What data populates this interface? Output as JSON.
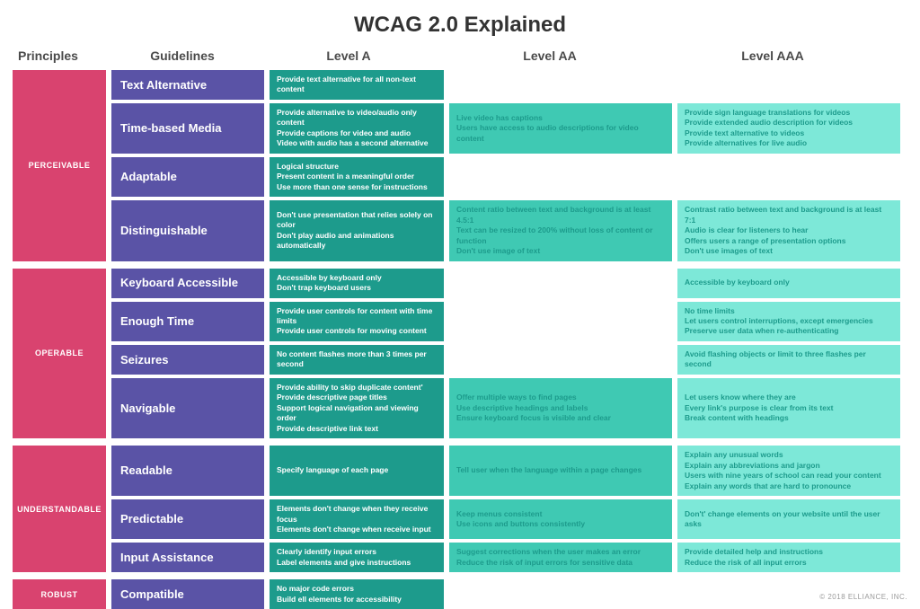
{
  "title": "WCAG 2.0 Explained",
  "columns": {
    "principles": "Principles",
    "guidelines": "Guidelines",
    "levelA": "Level A",
    "levelAA": "Level AA",
    "levelAAA": "Level AAA"
  },
  "colors": {
    "principle": "#d9436f",
    "guideline": "#5a53a6",
    "levelA": "#1d9b8c",
    "levelAA": "#3fc9b3",
    "levelAAA": "#7de8d8"
  },
  "footer": "© 2018 ELLIANCE, INC.",
  "sections": [
    {
      "principle": "PERCEIVABLE",
      "rows": [
        {
          "guideline": "Text Alternative",
          "levelA": [
            "Provide text alternative for all non-text content"
          ],
          "levelAA": [],
          "levelAAA": []
        },
        {
          "guideline": "Time-based Media",
          "levelA": [
            "Provide alternative to video/audio only content",
            "Provide captions for video and audio",
            "Video with audio has a second alternative"
          ],
          "levelAA": [
            "Live video has captions",
            "Users have access to audio descriptions for video content"
          ],
          "levelAAA": [
            "Provide sign language translations for videos",
            "Provide extended audio description for videos",
            "Provide text alternative to videos",
            "Provide alternatives for live audio"
          ]
        },
        {
          "guideline": "Adaptable",
          "levelA": [
            "Logical structure",
            "Present content in a meaningful order",
            "Use more than one sense for instructions"
          ],
          "levelAA": [],
          "levelAAA": []
        },
        {
          "guideline": "Distinguishable",
          "levelA": [
            "Don't use presentation that relies solely on color",
            "Don't play audio and animations automatically"
          ],
          "levelAA": [
            "Content ratio between text and background is at least 4.5:1",
            "Text can be resized to 200% without loss of content or function",
            "Don't use image of text"
          ],
          "levelAAA": [
            "Contrast ratio between text and background is at least 7:1",
            "Audio is clear for listeners to hear",
            "Offers users a range of presentation options",
            "Don't use images of text"
          ]
        }
      ]
    },
    {
      "principle": "OPERABLE",
      "rows": [
        {
          "guideline": "Keyboard Accessible",
          "levelA": [
            "Accessible by keyboard only",
            "Don't trap keyboard users"
          ],
          "levelAA": [],
          "levelAAA": [
            "Accessible by keyboard only"
          ]
        },
        {
          "guideline": "Enough Time",
          "levelA": [
            "Provide user controls for content with time limits",
            "Provide user controls for moving content"
          ],
          "levelAA": [],
          "levelAAA": [
            "No time limits",
            "Let users control interruptions, except emergencies",
            "Preserve user data when re-authenticating"
          ]
        },
        {
          "guideline": "Seizures",
          "levelA": [
            "No content flashes more than 3 times per second"
          ],
          "levelAA": [],
          "levelAAA": [
            "Avoid flashing objects or limit to three flashes per second"
          ]
        },
        {
          "guideline": "Navigable",
          "levelA": [
            "Provide ability to skip duplicate content'",
            "Provide descriptive page titles",
            "Support logical navigation and viewing order",
            "Provide descriptive link text"
          ],
          "levelAA": [
            "Offer multiple ways to find pages",
            "Use descriptive headings and labels",
            "Ensure keyboard focus is visible and clear"
          ],
          "levelAAA": [
            "Let users know where they are",
            "Every link's purpose is clear from its text",
            "Break content with headings"
          ]
        }
      ]
    },
    {
      "principle": "UNDERSTANDABLE",
      "rows": [
        {
          "guideline": "Readable",
          "levelA": [
            "Specify language of each page"
          ],
          "levelAA": [
            "Tell user when the language within a page changes"
          ],
          "levelAAA": [
            "Explain any unusual words",
            "Explain any abbreviations and jargon",
            "Users with nine years of school can read your content",
            "Explain any words that are hard to pronounce"
          ]
        },
        {
          "guideline": "Predictable",
          "levelA": [
            "Elements don't change when they receive focus",
            "Elements don't change when receive input"
          ],
          "levelAA": [
            "Keep menus consistent",
            "Use icons and buttons consistently"
          ],
          "levelAAA": [
            "Don't' change elements on your website until the user asks"
          ]
        },
        {
          "guideline": "Input Assistance",
          "levelA": [
            "Clearly identify input errors",
            "Label elements and give instructions"
          ],
          "levelAA": [
            "Suggest corrections when the user makes an error",
            "Reduce the risk of input errors for sensitive data"
          ],
          "levelAAA": [
            "Provide detailed help and instructions",
            "Reduce the risk of all input errors"
          ]
        }
      ]
    },
    {
      "principle": "ROBUST",
      "rows": [
        {
          "guideline": "Compatible",
          "levelA": [
            "No major code errors",
            "Build ell elements for accessibility"
          ],
          "levelAA": [],
          "levelAAA": []
        }
      ]
    }
  ]
}
